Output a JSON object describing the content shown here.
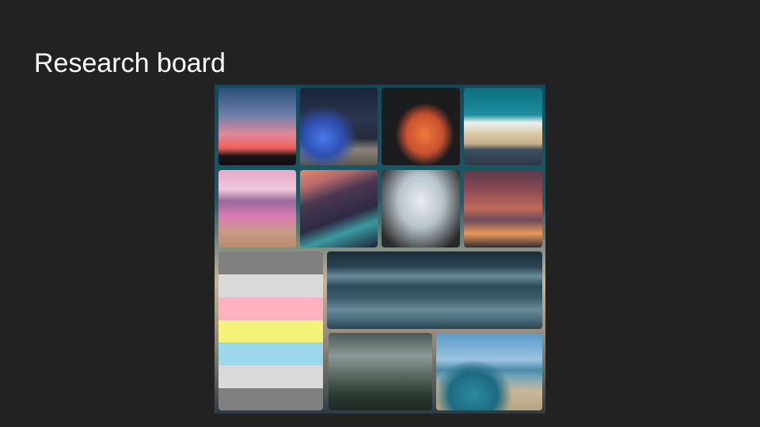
{
  "header": {
    "title": "Research board"
  }
}
